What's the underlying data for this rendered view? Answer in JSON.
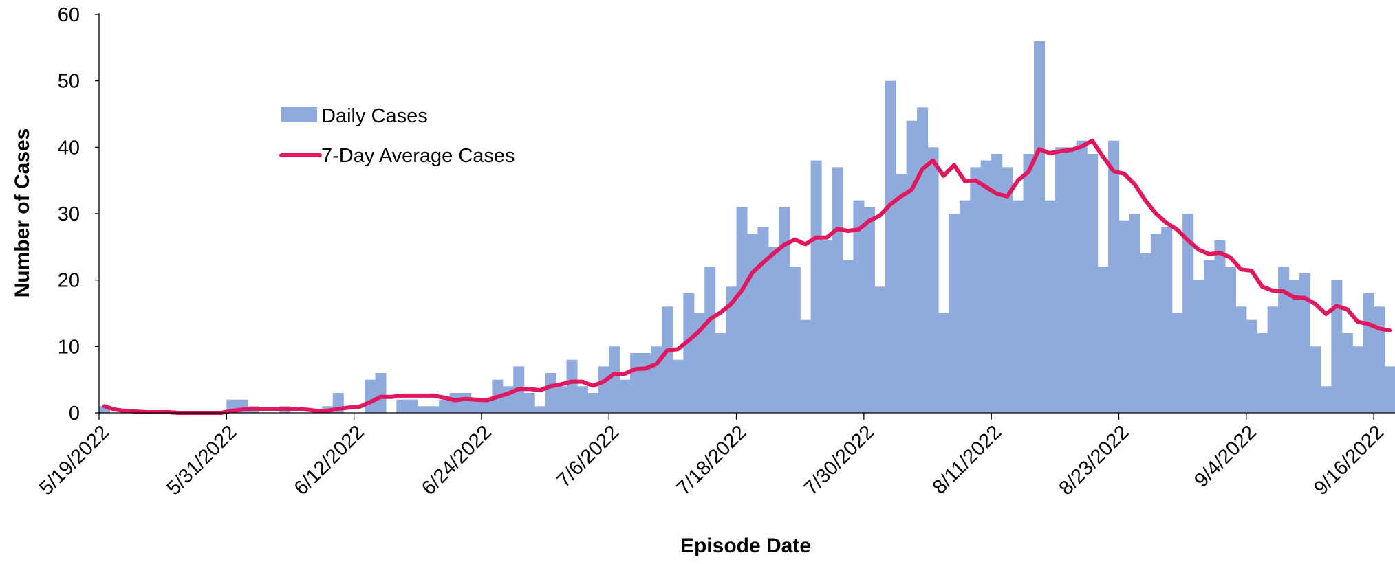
{
  "chart_data": {
    "type": "bar",
    "x_label": "Episode Date",
    "y_label": "Number of Cases",
    "categories": [
      "5/19/2022",
      null,
      null,
      null,
      null,
      null,
      null,
      null,
      null,
      null,
      null,
      null,
      "5/31/2022",
      null,
      null,
      null,
      null,
      null,
      null,
      null,
      null,
      null,
      null,
      null,
      "6/12/2022",
      null,
      null,
      null,
      null,
      null,
      null,
      null,
      null,
      null,
      null,
      null,
      "6/24/2022",
      null,
      null,
      null,
      null,
      null,
      null,
      null,
      null,
      null,
      null,
      null,
      "7/6/2022",
      null,
      null,
      null,
      null,
      null,
      null,
      null,
      null,
      null,
      null,
      null,
      "7/18/2022",
      null,
      null,
      null,
      null,
      null,
      null,
      null,
      null,
      null,
      null,
      null,
      "7/30/2022",
      null,
      null,
      null,
      null,
      null,
      null,
      null,
      null,
      null,
      null,
      null,
      "8/11/2022",
      null,
      null,
      null,
      null,
      null,
      null,
      null,
      null,
      null,
      null,
      null,
      "8/23/2022",
      null,
      null,
      null,
      null,
      null,
      null,
      null,
      null,
      null,
      null,
      null,
      "9/4/2022",
      null,
      null,
      null,
      null,
      null,
      null,
      null,
      null,
      null,
      null,
      null,
      "9/16/2022",
      null
    ],
    "series": [
      {
        "name": "Daily Cases",
        "type": "bar",
        "color": "#8faadc",
        "values": [
          1,
          0,
          0,
          0,
          0,
          0,
          0,
          0,
          0,
          0,
          0,
          0,
          2,
          2,
          1,
          0,
          0,
          1,
          0,
          0,
          0,
          1,
          3,
          0,
          0,
          5,
          6,
          0,
          2,
          2,
          1,
          1,
          2,
          3,
          3,
          2,
          2,
          5,
          4,
          7,
          3,
          1,
          6,
          4,
          8,
          4,
          3,
          7,
          10,
          5,
          9,
          9,
          10,
          16,
          8,
          18,
          15,
          22,
          12,
          19,
          31,
          27,
          28,
          25,
          31,
          22,
          14,
          38,
          26,
          37,
          23,
          32,
          31,
          19,
          50,
          36,
          44,
          46,
          40,
          15,
          30,
          32,
          37,
          38,
          39,
          37,
          32,
          39,
          56,
          32,
          40,
          40,
          41,
          39,
          22,
          41,
          29,
          30,
          24,
          27,
          28,
          15,
          30,
          20,
          23,
          26,
          22,
          16,
          14,
          12,
          16,
          22,
          20,
          21,
          10,
          4,
          20,
          12,
          10,
          18,
          16,
          7
        ]
      },
      {
        "name": "7-Day Average Cases",
        "type": "line",
        "color": "#e0185f",
        "values": [
          1,
          0.5,
          0.3,
          0.2,
          0.1,
          0.1,
          0.1,
          0,
          0,
          0,
          0,
          0,
          0.3,
          0.5,
          0.6,
          0.6,
          0.6,
          0.6,
          0.6,
          0.5,
          0.3,
          0.3,
          0.6,
          0.8,
          0.9,
          1.6,
          2.4,
          2.4,
          2.6,
          2.6,
          2.6,
          2.6,
          2.3,
          1.9,
          2.1,
          2.0,
          1.9,
          2.4,
          2.9,
          3.6,
          3.6,
          3.4,
          4,
          4.3,
          4.7,
          4.7,
          4.1,
          4.7,
          5.9,
          5.9,
          6.6,
          6.7,
          7.4,
          9.4,
          9.6,
          10.9,
          12.3,
          14.1,
          15.1,
          16.4,
          18.4,
          21.1,
          22.6,
          24,
          25.3,
          26.1,
          25.4,
          26.4,
          26.4,
          27.7,
          27.4,
          27.6,
          28.9,
          29.7,
          31.4,
          32.6,
          33.6,
          36.7,
          38,
          35.7,
          37.3,
          34.9,
          35,
          34,
          33,
          32.6,
          35,
          36.3,
          39.7,
          39.1,
          39.4,
          39.6,
          40.1,
          41,
          38.6,
          36.4,
          36,
          34.4,
          32,
          30,
          28.6,
          27.6,
          26,
          24.6,
          23.9,
          24.1,
          23.4,
          21.6,
          21.4,
          19,
          18.4,
          18.3,
          17.4,
          17.3,
          16.4,
          14.9,
          16.1,
          15.6,
          13.7,
          13.4,
          12.7,
          12.4
        ]
      }
    ],
    "ylim": [
      0,
      60
    ],
    "yticks": [
      0,
      10,
      20,
      30,
      40,
      50,
      60
    ],
    "grid": false,
    "legend": "upper left"
  }
}
